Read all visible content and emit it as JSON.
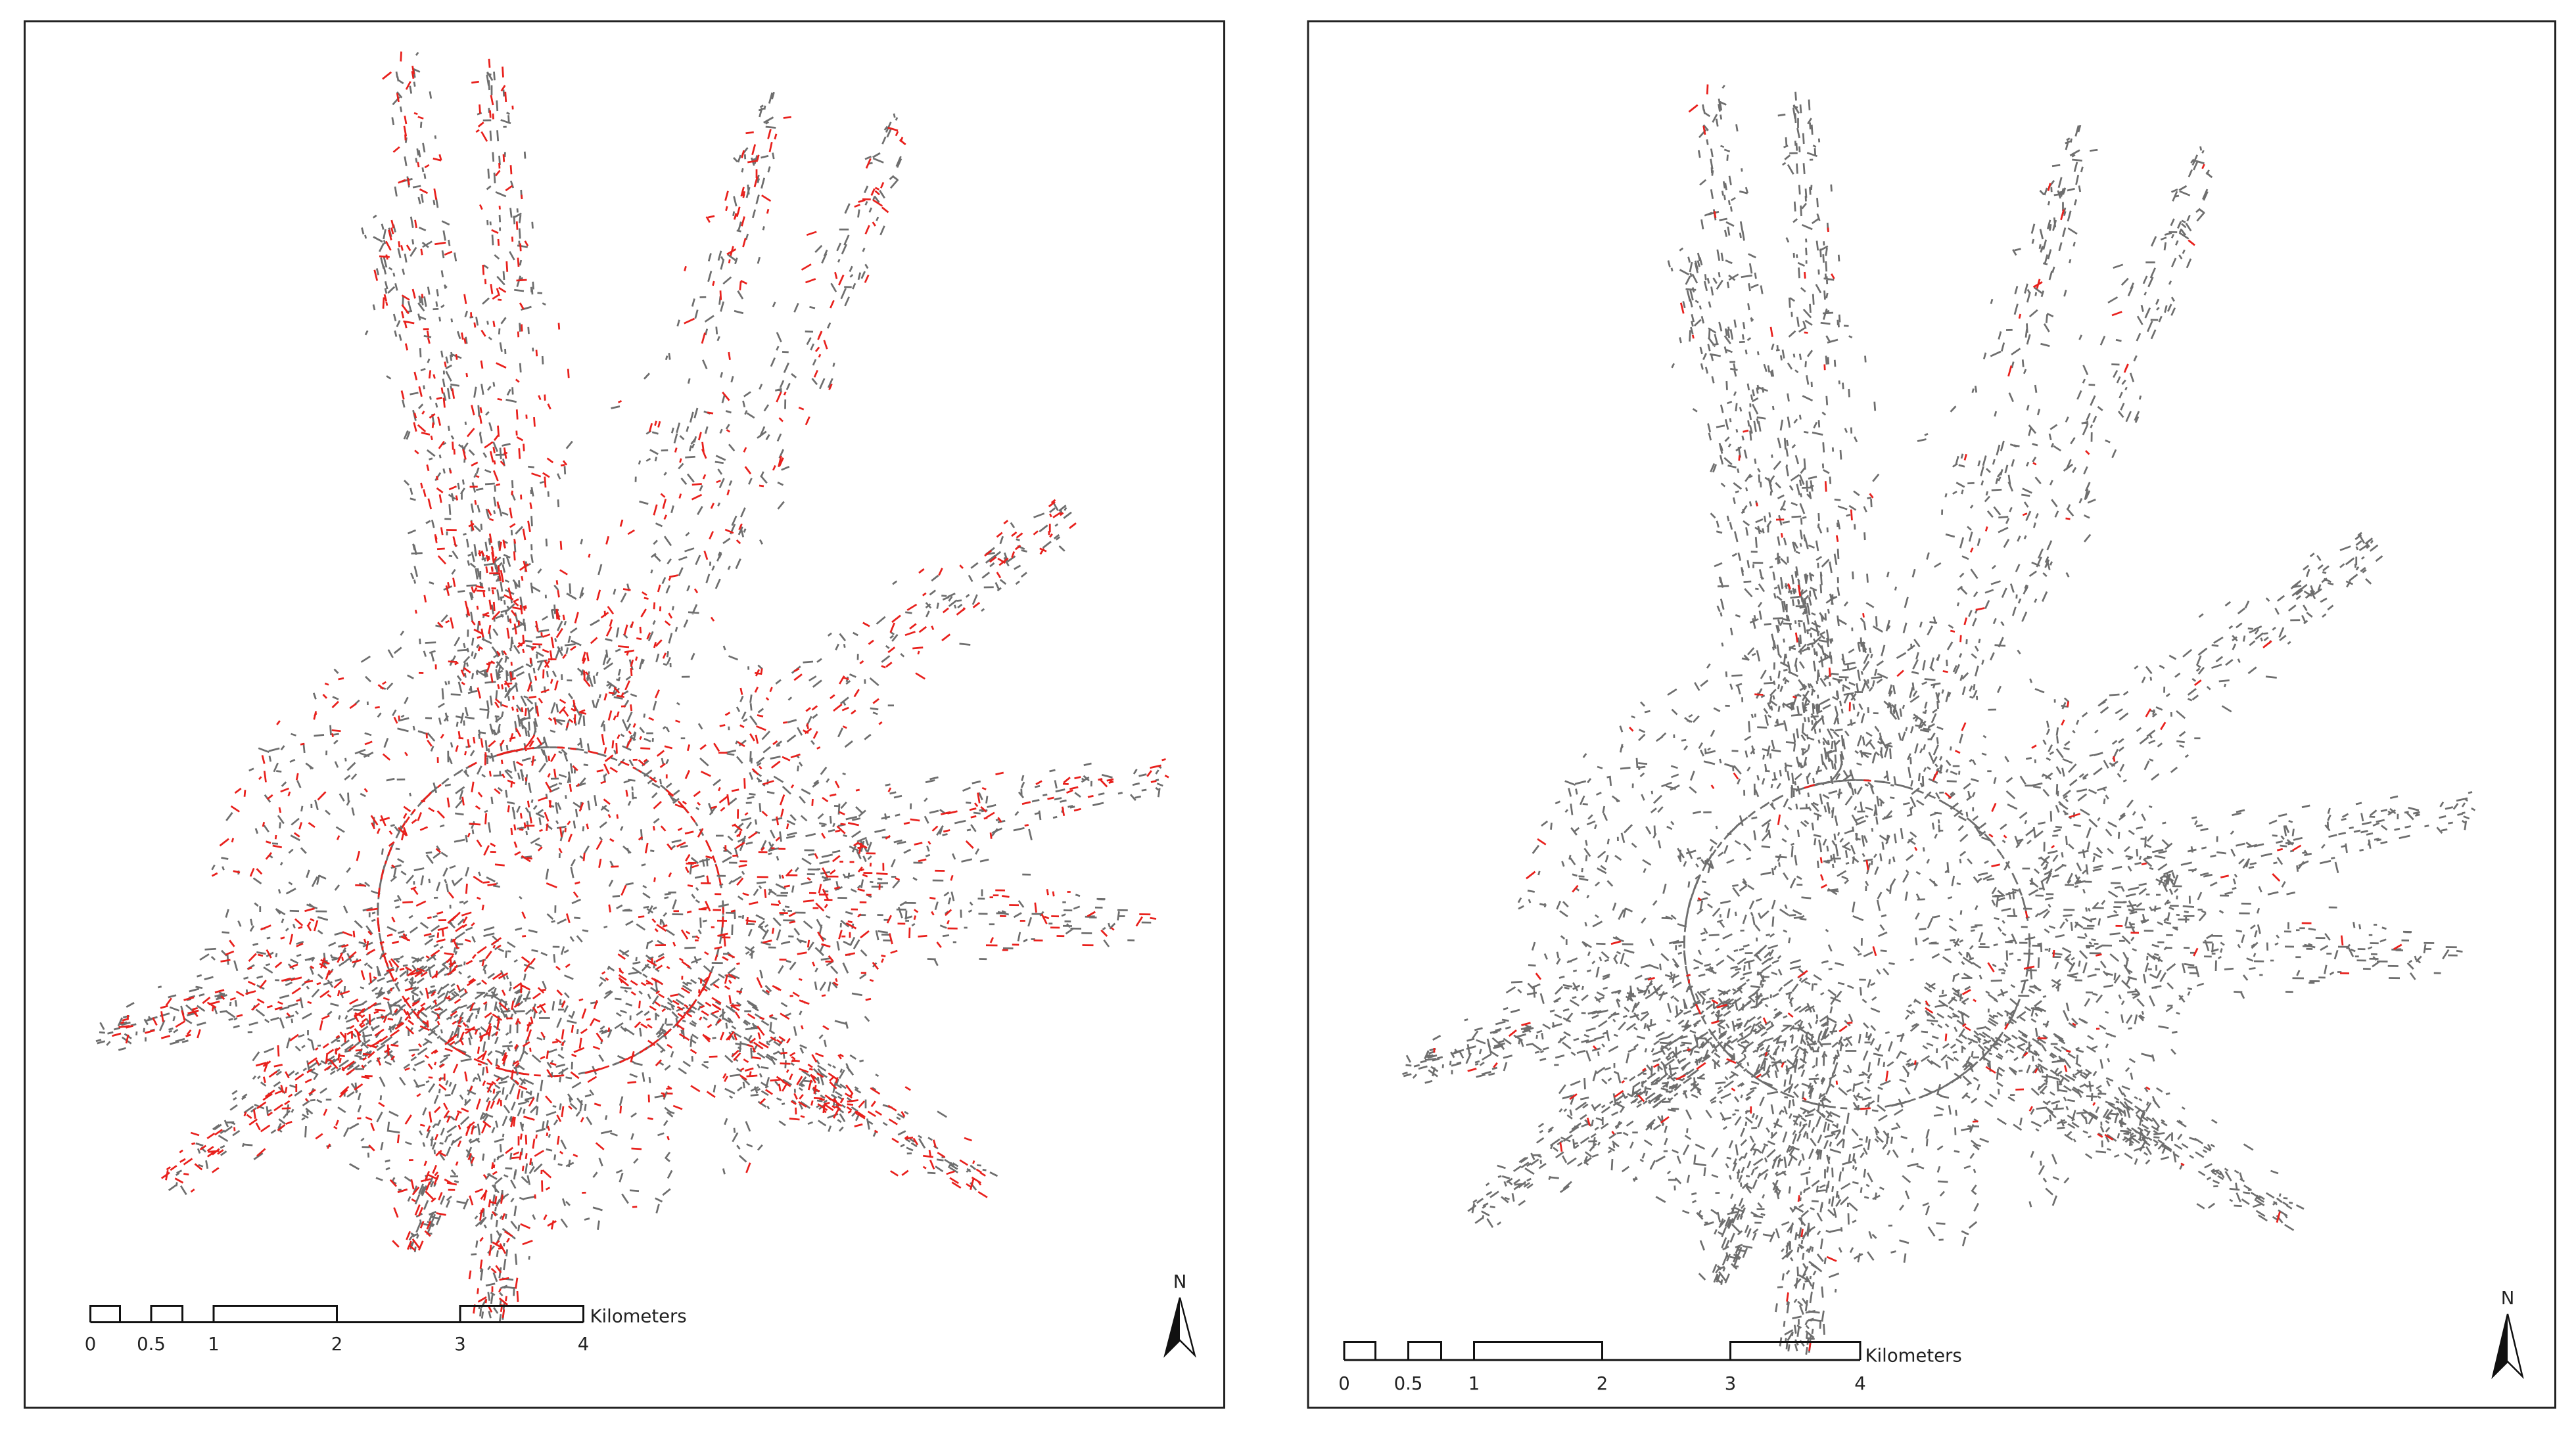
{
  "panels": [
    {
      "scale_labels": [
        "0",
        "0.5",
        "1",
        "2",
        "3",
        "4"
      ],
      "unit": "Kilometers",
      "north": "N"
    },
    {
      "scale_labels": [
        "0",
        "0.5",
        "1",
        "2",
        "3",
        "4"
      ],
      "unit": "Kilometers",
      "north": "N"
    }
  ]
}
